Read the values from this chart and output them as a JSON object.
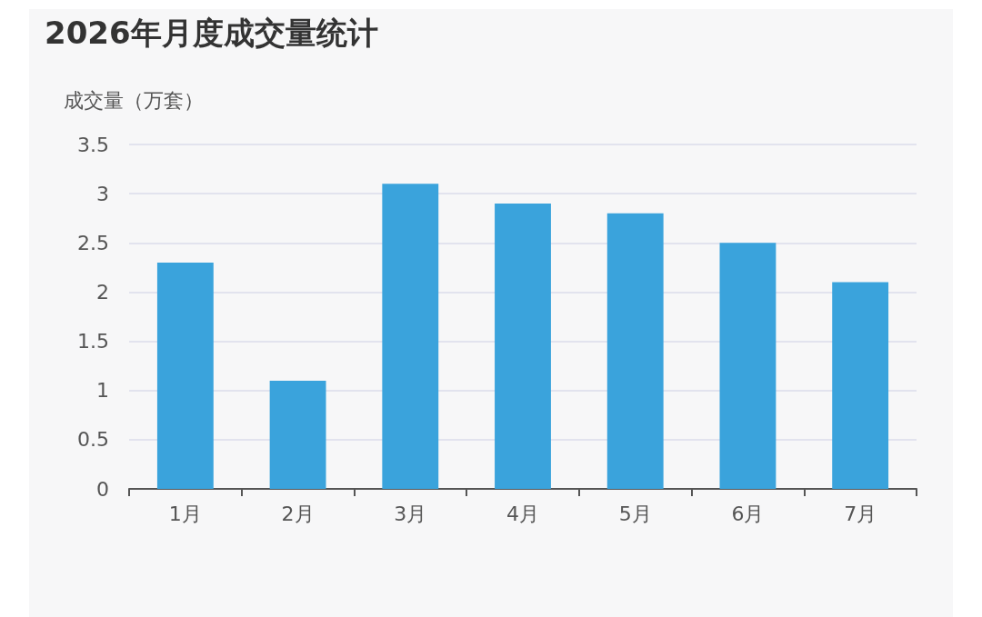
{
  "chart_data": {
    "type": "bar",
    "title": "2026年月度成交量统计",
    "ylabel": "成交量（万套）",
    "categories": [
      "1月",
      "2月",
      "3月",
      "4月",
      "5月",
      "6月",
      "7月"
    ],
    "values": [
      2.3,
      1.1,
      3.1,
      2.9,
      2.8,
      2.5,
      2.1
    ],
    "color": "#3aa3dc",
    "ylim": [
      0,
      3.5
    ],
    "yticks": [
      0,
      0.5,
      1,
      1.5,
      2,
      2.5,
      3,
      3.5
    ],
    "grid": "y"
  }
}
